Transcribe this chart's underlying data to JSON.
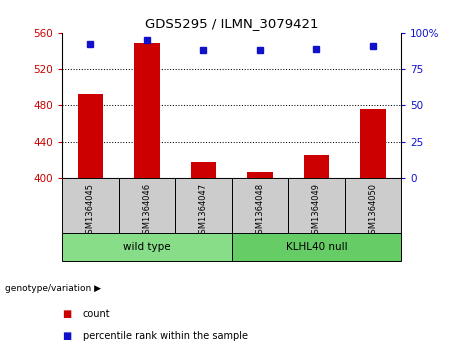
{
  "title": "GDS5295 / ILMN_3079421",
  "samples": [
    "GSM1364045",
    "GSM1364046",
    "GSM1364047",
    "GSM1364048",
    "GSM1364049",
    "GSM1364050"
  ],
  "counts": [
    493,
    549,
    418,
    407,
    426,
    476
  ],
  "percentile_ranks": [
    92,
    95,
    88,
    88,
    89,
    91
  ],
  "ylim_left": [
    400,
    560
  ],
  "ylim_right": [
    0,
    100
  ],
  "yticks_left": [
    400,
    440,
    480,
    520,
    560
  ],
  "yticks_right": [
    0,
    25,
    50,
    75,
    100
  ],
  "bar_color": "#cc0000",
  "dot_color": "#1111cc",
  "bar_width": 0.45,
  "groups": [
    {
      "label": "wild type",
      "indices": [
        0,
        1,
        2
      ],
      "color": "#88dd88"
    },
    {
      "label": "KLHL40 null",
      "indices": [
        3,
        4,
        5
      ],
      "color": "#66cc66"
    }
  ],
  "group_label_prefix": "genotype/variation",
  "legend_items": [
    {
      "label": "count",
      "color": "#cc0000"
    },
    {
      "label": "percentile rank within the sample",
      "color": "#1111cc"
    }
  ],
  "tick_color_left": "#cc0000",
  "tick_color_right": "#1111cc",
  "grid_color": "black",
  "background_color": "#ffffff",
  "sample_box_color": "#cccccc"
}
